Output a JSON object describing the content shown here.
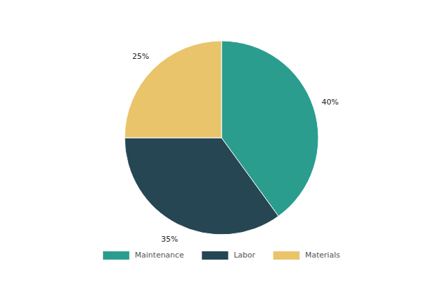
{
  "chart_data": {
    "type": "pie",
    "categories": [
      "Maintenance",
      "Labor",
      "Materials"
    ],
    "values": [
      40,
      35,
      25
    ],
    "value_labels": [
      "40%",
      "35%",
      "25%"
    ],
    "colors": [
      "#2a9d8f",
      "#264653",
      "#e9c46a"
    ],
    "data_labels": true,
    "legend": "bottom"
  }
}
